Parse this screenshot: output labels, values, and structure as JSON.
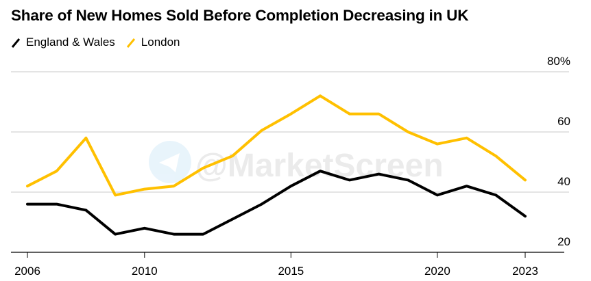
{
  "chart_data": {
    "type": "line",
    "title": "Share of New Homes Sold Before Completion Decreasing in UK",
    "x": [
      2006,
      2007,
      2008,
      2009,
      2010,
      2011,
      2012,
      2013,
      2014,
      2015,
      2016,
      2017,
      2018,
      2019,
      2020,
      2021,
      2022,
      2023
    ],
    "series": [
      {
        "name": "England & Wales",
        "color": "#000000",
        "values": [
          36,
          36,
          34,
          26,
          28,
          26,
          26,
          31,
          36,
          42,
          47,
          44,
          46,
          44,
          39,
          42,
          39,
          32
        ]
      },
      {
        "name": "London",
        "color": "#FFC000",
        "values": [
          42,
          47,
          58,
          39,
          41,
          42,
          48,
          52,
          60.5,
          66,
          72,
          66,
          66,
          60,
          56,
          58,
          52,
          44
        ]
      }
    ],
    "x_ticks": [
      "2006",
      "2010",
      "2015",
      "2020",
      "2023"
    ],
    "y_ticks": [
      "20",
      "40",
      "60",
      "80%"
    ],
    "ylim": [
      20,
      80
    ],
    "xlim": [
      2006,
      2023
    ],
    "grid": true,
    "y_axis_side": "right",
    "legend_position": "top-left"
  },
  "watermark": "@MarketScreen"
}
